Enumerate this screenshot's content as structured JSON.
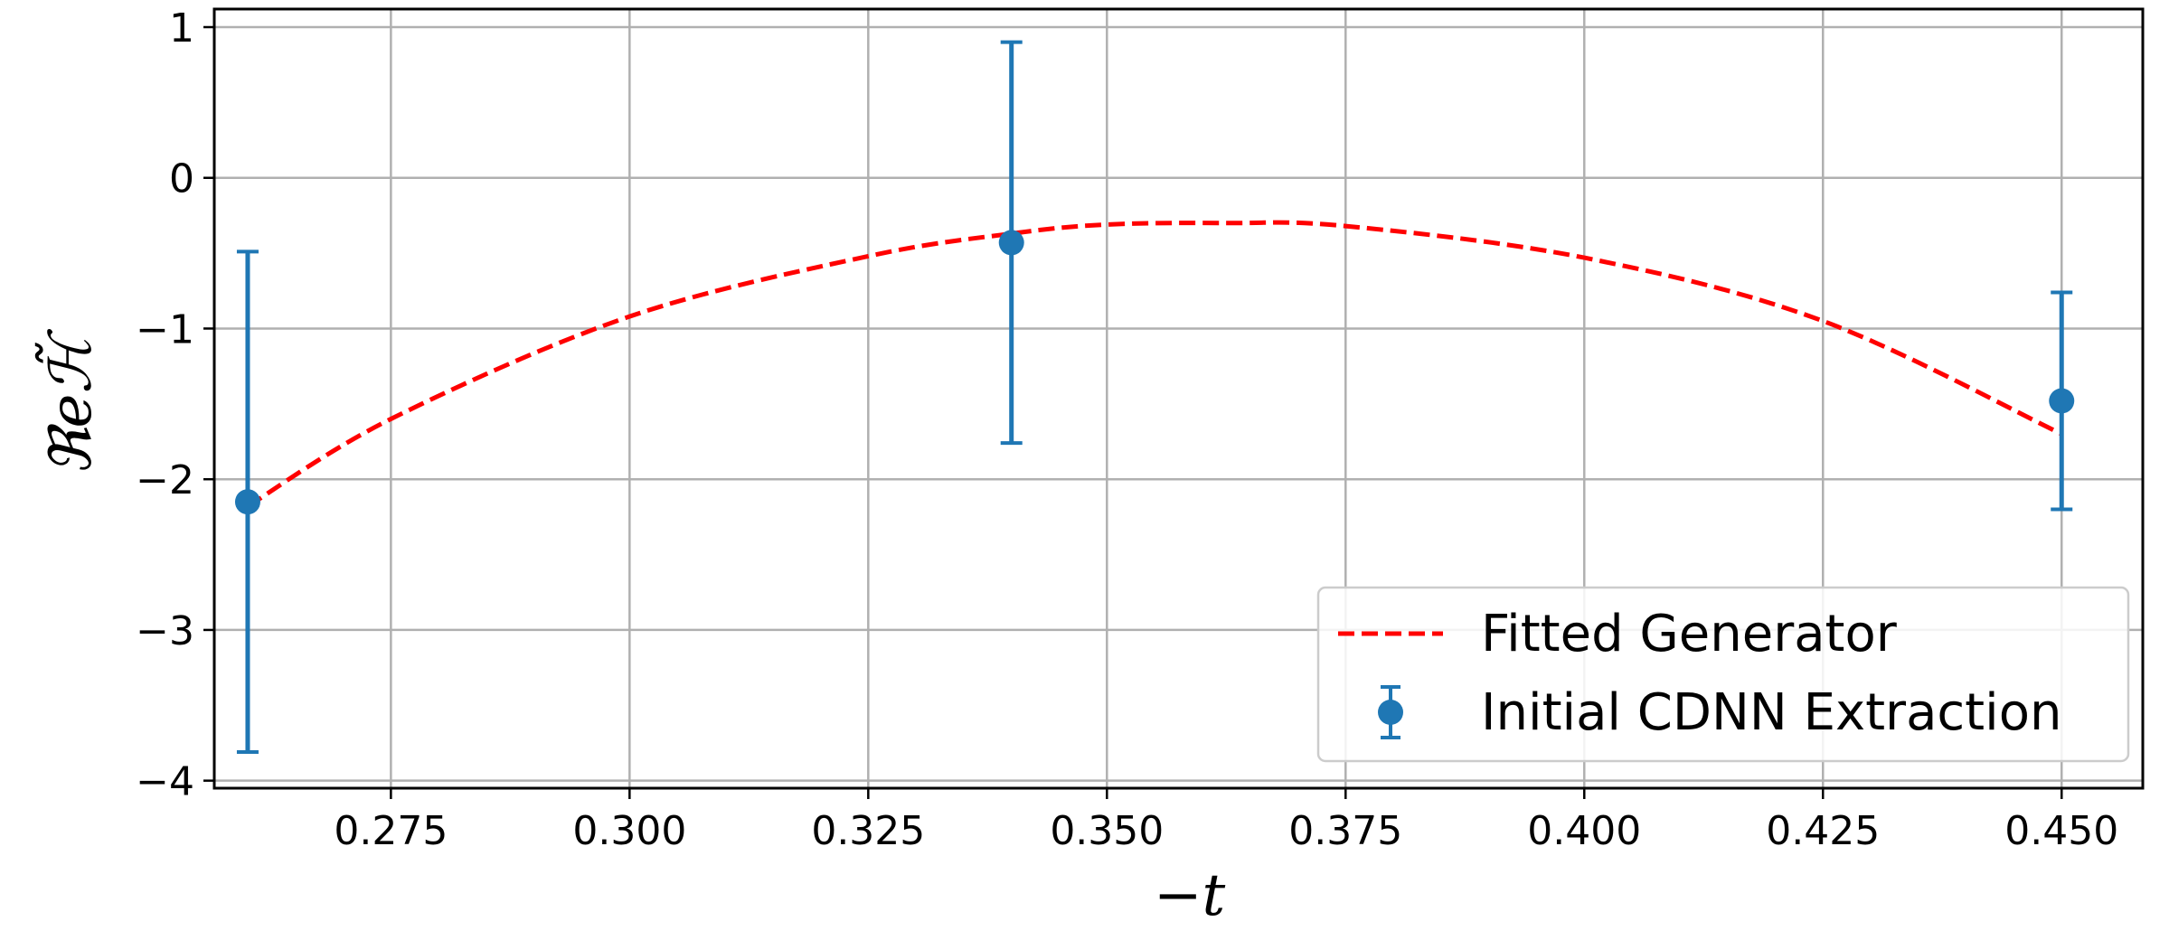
{
  "chart_data": {
    "type": "scatter",
    "xlabel": "−t",
    "ylabel": "ℜeℋ̃",
    "xlim": [
      0.2565,
      0.4585
    ],
    "ylim": [
      -4.05,
      1.12
    ],
    "grid": true,
    "legend_position": "lower-right",
    "x_ticks": [
      0.275,
      0.3,
      0.325,
      0.35,
      0.375,
      0.4,
      0.425,
      0.45
    ],
    "x_tick_labels": [
      "0.275",
      "0.300",
      "0.325",
      "0.350",
      "0.375",
      "0.400",
      "0.425",
      "0.450"
    ],
    "y_ticks": [
      1,
      0,
      -1,
      -2,
      -3,
      -4
    ],
    "y_tick_labels": [
      "1",
      "0",
      "−1",
      "−2",
      "−3",
      "−4"
    ],
    "series": [
      {
        "name": "Fitted Generator",
        "kind": "line",
        "style": "dashed",
        "color": "#ff0000",
        "x": [
          0.26,
          0.275,
          0.3,
          0.325,
          0.34,
          0.35,
          0.3625,
          0.375,
          0.4,
          0.425,
          0.45
        ],
        "y": [
          -2.18,
          -1.6,
          -0.92,
          -0.52,
          -0.37,
          -0.31,
          -0.3,
          -0.32,
          -0.53,
          -0.95,
          -1.7
        ]
      },
      {
        "name": "Initial CDNN Extraction",
        "kind": "errorbar",
        "color": "#1f77b4",
        "x": [
          0.26,
          0.34,
          0.45
        ],
        "y": [
          -2.15,
          -0.43,
          -1.48
        ],
        "yerr": [
          1.66,
          1.33,
          0.72
        ]
      }
    ]
  }
}
